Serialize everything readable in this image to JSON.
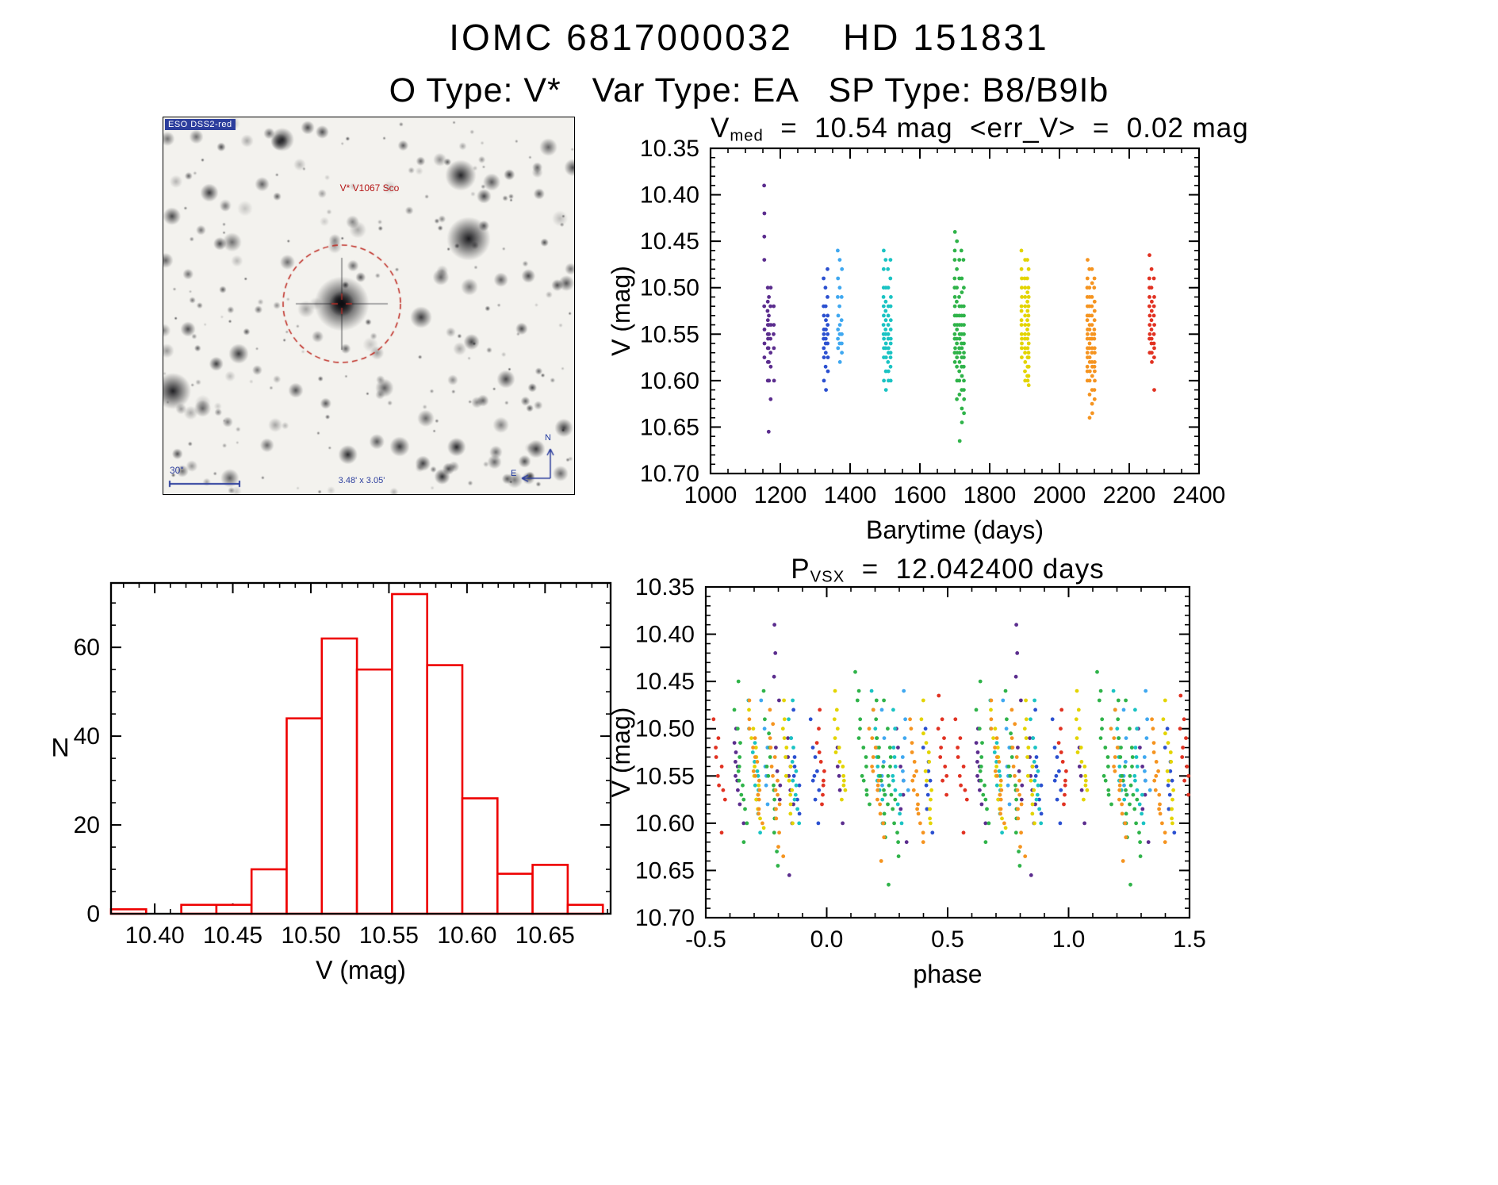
{
  "page": {
    "title": "IOMC 6817000032    HD 151831",
    "subtitle": "O Type: V*   Var Type: EA   SP Type: B8/B9Ib"
  },
  "finder": {
    "survey_label": "ESO DSS2-red",
    "target_label": "V* V1067 Sco",
    "scale_label": "30\"",
    "fov_label": "3.48' x 3.05'",
    "compass_n": "N",
    "compass_e": "E",
    "marker_color": "#c03028",
    "annotation_color": "#2c3e9d"
  },
  "chart_data": [
    {
      "type": "scatter",
      "id": "lightcurve",
      "title_segments": [
        {
          "t": "V"
        },
        {
          "sub": "med"
        },
        {
          "t": "  =  10.54 mag  <err_V>  =  0.02 mag"
        }
      ],
      "xlabel": "Barytime (days)",
      "ylabel": "V (mag)",
      "xlim": [
        1000,
        2400
      ],
      "ylim": [
        10.35,
        10.7
      ],
      "y_inverted": true,
      "xticks": [
        1000,
        1200,
        1400,
        1600,
        1800,
        2000,
        2200,
        2400
      ],
      "xtick_labels": [
        "1000",
        "1200",
        "1400",
        "1600",
        "1800",
        "2000",
        "2200",
        "2400"
      ],
      "yticks": [
        10.35,
        10.4,
        10.45,
        10.5,
        10.55,
        10.6,
        10.65,
        10.7
      ],
      "ytick_labels": [
        "10.35",
        "10.40",
        "10.45",
        "10.50",
        "10.55",
        "10.60",
        "10.65",
        "10.70"
      ],
      "grid": false,
      "legend": "none",
      "visit_dt": 0.04,
      "series": [
        {
          "name": "epoch-1150",
          "color": "#5b2d8e",
          "visits": [
            {
              "t0": 1154.0,
              "v": [
                10.39,
                10.42,
                10.445,
                10.47,
                10.52,
                10.545,
                10.56,
                10.575
              ]
            },
            {
              "t0": 1164.0,
              "v": [
                10.5,
                10.515,
                10.525,
                10.535,
                10.54,
                10.55,
                10.555,
                10.565,
                10.58,
                10.6
              ]
            },
            {
              "t0": 1166.6,
              "v": [
                10.51,
                10.53,
                10.54,
                10.55,
                10.565,
                10.58,
                10.6,
                10.655
              ]
            },
            {
              "t0": 1172.2,
              "v": [
                10.5,
                10.52,
                10.54,
                10.555,
                10.57,
                10.585,
                10.62
              ]
            },
            {
              "t0": 1181.2,
              "v": [
                10.52,
                10.54,
                10.55,
                10.565,
                10.6
              ]
            }
          ]
        },
        {
          "name": "epoch-1330",
          "color": "#2b50d0",
          "visits": [
            {
              "t0": 1324.4,
              "v": [
                10.49,
                10.52,
                10.53,
                10.545,
                10.55,
                10.555,
                10.565,
                10.575,
                10.6
              ]
            },
            {
              "t0": 1330.0,
              "v": [
                10.5,
                10.52,
                10.535,
                10.545,
                10.555,
                10.56,
                10.57,
                10.585,
                10.61
              ]
            },
            {
              "t0": 1335.5,
              "v": [
                10.48,
                10.51,
                10.53,
                10.54,
                10.55,
                10.56,
                10.575,
                10.59
              ]
            }
          ]
        },
        {
          "name": "epoch-1370",
          "color": "#3fa8f0",
          "visits": [
            {
              "t0": 1365.0,
              "v": [
                10.46,
                10.49,
                10.51,
                10.53,
                10.545,
                10.555,
                10.565
              ]
            },
            {
              "t0": 1370.2,
              "v": [
                10.47,
                10.5,
                10.52,
                10.54,
                10.55,
                10.56,
                10.58
              ]
            },
            {
              "t0": 1376.0,
              "v": [
                10.48,
                10.51,
                10.535,
                10.55,
                10.56,
                10.57
              ]
            }
          ]
        },
        {
          "name": "epoch-1510",
          "color": "#1ac3c3",
          "visits": [
            {
              "t0": 1496.0,
              "v": [
                10.46,
                10.48,
                10.5,
                10.51,
                10.52,
                10.53,
                10.54,
                10.55,
                10.555,
                10.565,
                10.575,
                10.6
              ]
            },
            {
              "t0": 1502.0,
              "v": [
                10.47,
                10.5,
                10.515,
                10.525,
                10.535,
                10.545,
                10.55,
                10.56,
                10.565,
                10.575,
                10.59,
                10.61
              ]
            },
            {
              "t0": 1509.0,
              "v": [
                10.48,
                10.5,
                10.52,
                10.53,
                10.54,
                10.55,
                10.555,
                10.565,
                10.57,
                10.58,
                10.59,
                10.6
              ]
            },
            {
              "t0": 1516.0,
              "v": [
                10.47,
                10.49,
                10.51,
                10.52,
                10.535,
                10.545,
                10.555,
                10.56,
                10.57,
                10.575,
                10.585,
                10.6
              ]
            }
          ]
        },
        {
          "name": "epoch-1710",
          "color": "#2fb349",
          "visits": [
            {
              "t0": 1700.0,
              "v": [
                10.44,
                10.46,
                10.47,
                10.49,
                10.5,
                10.51,
                10.52,
                10.53,
                10.54,
                10.55,
                10.555,
                10.565,
                10.57,
                10.58
              ]
            },
            {
              "t0": 1706.0,
              "v": [
                10.45,
                10.48,
                10.5,
                10.515,
                10.53,
                10.54,
                10.545,
                10.555,
                10.56,
                10.57,
                10.575,
                10.585,
                10.6,
                10.62
              ]
            },
            {
              "t0": 1713.0,
              "v": [
                10.47,
                10.49,
                10.51,
                10.52,
                10.53,
                10.54,
                10.55,
                10.555,
                10.565,
                10.57,
                10.58,
                10.59,
                10.6,
                10.615,
                10.665
              ]
            },
            {
              "t0": 1719.5,
              "v": [
                10.46,
                10.49,
                10.505,
                10.52,
                10.53,
                10.54,
                10.55,
                10.56,
                10.565,
                10.575,
                10.585,
                10.595,
                10.61,
                10.63,
                10.645
              ]
            },
            {
              "t0": 1725.5,
              "v": [
                10.47,
                10.5,
                10.52,
                10.53,
                10.54,
                10.55,
                10.56,
                10.57,
                10.575,
                10.585,
                10.6,
                10.61,
                10.62,
                10.635
              ]
            }
          ]
        },
        {
          "name": "epoch-1900",
          "color": "#e3d400",
          "visits": [
            {
              "t0": 1891.5,
              "v": [
                10.46,
                10.48,
                10.49,
                10.5,
                10.51,
                10.52,
                10.525,
                10.535,
                10.54,
                10.55,
                10.555,
                10.56,
                10.565,
                10.575
              ]
            },
            {
              "t0": 1901.0,
              "v": [
                10.47,
                10.49,
                10.5,
                10.51,
                10.52,
                10.53,
                10.54,
                10.55,
                10.555,
                10.565,
                10.57,
                10.58,
                10.59,
                10.6
              ]
            },
            {
              "t0": 1908.0,
              "v": [
                10.47,
                10.49,
                10.505,
                10.515,
                10.525,
                10.535,
                10.545,
                10.555,
                10.565,
                10.575,
                10.585,
                10.595,
                10.6
              ]
            },
            {
              "t0": 1911.5,
              "v": [
                10.48,
                10.5,
                10.51,
                10.52,
                10.53,
                10.54,
                10.55,
                10.56,
                10.57,
                10.575,
                10.585,
                10.595,
                10.605
              ]
            }
          ]
        },
        {
          "name": "epoch-2090",
          "color": "#f59420",
          "visits": [
            {
              "t0": 2080.0,
              "v": [
                10.47,
                10.49,
                10.5,
                10.51,
                10.52,
                10.53,
                10.535,
                10.545,
                10.55,
                10.555,
                10.565,
                10.57,
                10.575,
                10.585,
                10.59,
                10.6
              ]
            },
            {
              "t0": 2086.0,
              "v": [
                10.48,
                10.5,
                10.51,
                10.52,
                10.53,
                10.54,
                10.545,
                10.555,
                10.56,
                10.565,
                10.575,
                10.58,
                10.59,
                10.6,
                10.615,
                10.64
              ]
            },
            {
              "t0": 2093.0,
              "v": [
                10.48,
                10.495,
                10.51,
                10.52,
                10.53,
                10.54,
                10.55,
                10.555,
                10.565,
                10.57,
                10.58,
                10.585,
                10.595,
                10.61,
                10.625,
                10.635
              ]
            },
            {
              "t0": 2100.0,
              "v": [
                10.49,
                10.5,
                10.515,
                10.525,
                10.535,
                10.545,
                10.55,
                10.555,
                10.565,
                10.57,
                10.58,
                10.585,
                10.59,
                10.6,
                10.61,
                10.62
              ]
            }
          ]
        },
        {
          "name": "epoch-2265",
          "color": "#e13222",
          "visits": [
            {
              "t0": 2258.0,
              "v": [
                10.465,
                10.49,
                10.5,
                10.51,
                10.52,
                10.53,
                10.54,
                10.55,
                10.555,
                10.57
              ]
            },
            {
              "t0": 2264.0,
              "v": [
                10.48,
                10.5,
                10.515,
                10.525,
                10.535,
                10.545,
                10.555,
                10.56,
                10.57,
                10.58
              ]
            },
            {
              "t0": 2271.0,
              "v": [
                10.49,
                10.51,
                10.52,
                10.53,
                10.54,
                10.55,
                10.56,
                10.565,
                10.575,
                10.61
              ]
            }
          ]
        }
      ]
    },
    {
      "type": "bar",
      "id": "histogram",
      "xlabel": "V (mag)",
      "ylabel": "N",
      "xlim": [
        10.372,
        10.692
      ],
      "ylim": [
        0,
        74.5
      ],
      "y_inverted": false,
      "xticks": [
        10.4,
        10.45,
        10.5,
        10.55,
        10.6,
        10.65
      ],
      "xtick_labels": [
        "10.40",
        "10.45",
        "10.50",
        "10.55",
        "10.60",
        "10.65"
      ],
      "yticks": [
        0,
        20,
        40,
        60
      ],
      "ytick_labels": [
        "0",
        "20",
        "40",
        "60"
      ],
      "grid": false,
      "legend": "none",
      "bin_start": 10.372,
      "bin_width": 0.0225,
      "counts": [
        1,
        0,
        2,
        2,
        10,
        44,
        62,
        55,
        72,
        56,
        26,
        9,
        11,
        2
      ],
      "total_points": 352,
      "color": "#ee0000"
    },
    {
      "type": "scatter",
      "id": "phase-plot",
      "title_segments": [
        {
          "t": "P"
        },
        {
          "sub": "VSX"
        },
        {
          "t": "  =  12.042400 days"
        }
      ],
      "xlabel": "phase",
      "ylabel": "V (mag)",
      "xlim": [
        -0.5,
        1.5
      ],
      "ylim": [
        10.35,
        10.7
      ],
      "y_inverted": true,
      "xticks": [
        -0.5,
        0.0,
        0.5,
        1.0,
        1.5
      ],
      "xtick_labels": [
        "-0.5",
        "0.0",
        "0.5",
        "1.0",
        "1.5"
      ],
      "yticks": [
        10.35,
        10.4,
        10.45,
        10.5,
        10.55,
        10.6,
        10.65,
        10.7
      ],
      "ytick_labels": [
        "10.35",
        "10.40",
        "10.45",
        "10.50",
        "10.55",
        "10.60",
        "10.65",
        "10.70"
      ],
      "grid": false,
      "legend": "none",
      "period_days": 12.0424,
      "epoch_t0": 1000.0,
      "folded_from_series_of_chart": 0
    }
  ]
}
